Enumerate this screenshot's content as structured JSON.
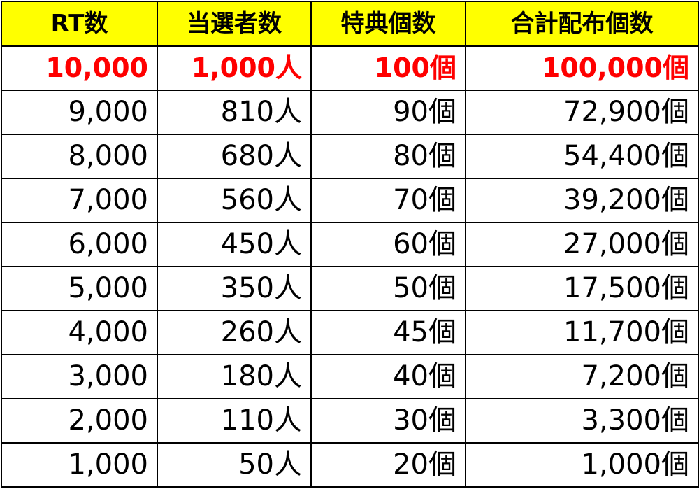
{
  "table": {
    "header": [
      "RT数",
      "当選者数",
      "特典個数",
      "合計配布個数"
    ],
    "rows": [
      [
        "10,000",
        "1,000人",
        "100個",
        "100,000個"
      ],
      [
        "9,000",
        "810人",
        "90個",
        "72,900個"
      ],
      [
        "8,000",
        "680人",
        "80個",
        "54,400個"
      ],
      [
        "7,000",
        "560人",
        "70個",
        "39,200個"
      ],
      [
        "6,000",
        "450人",
        "60個",
        "27,000個"
      ],
      [
        "5,000",
        "350人",
        "50個",
        "17,500個"
      ],
      [
        "4,000",
        "260人",
        "45個",
        "11,700個"
      ],
      [
        "3,000",
        "180人",
        "40個",
        "7,200個"
      ],
      [
        "2,000",
        "110人",
        "30個",
        "3,300個"
      ],
      [
        "1,000",
        "50人",
        "20個",
        "1,000個"
      ]
    ]
  }
}
